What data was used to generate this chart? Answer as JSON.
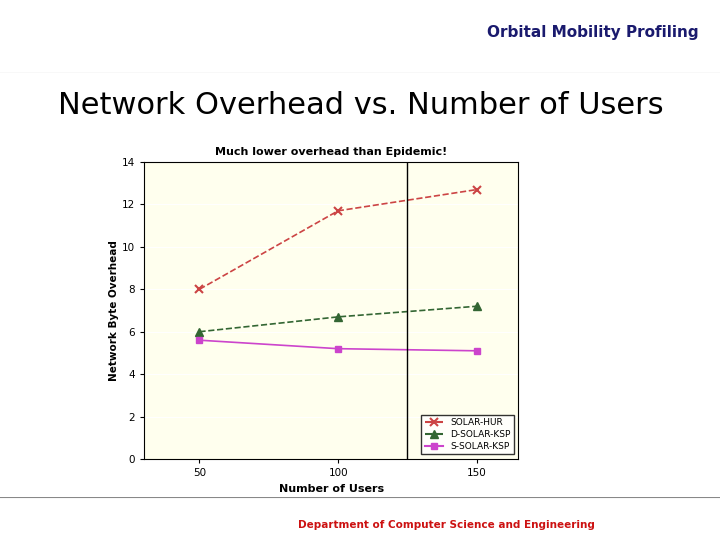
{
  "title": "Network Overhead vs. Number of Users",
  "header_text": "Orbital Mobility Profiling",
  "chart_title": "Much lower overhead than Epidemic!",
  "xlabel": "Number of Users",
  "ylabel": "Network Byte Overhead",
  "x_values": [
    50,
    100,
    150
  ],
  "solar_hur": [
    8.0,
    11.7,
    12.7
  ],
  "d_solar_ksp": [
    6.0,
    6.7,
    7.2
  ],
  "s_solar_ksp": [
    5.6,
    5.2,
    5.1
  ],
  "ylim": [
    0,
    14
  ],
  "yticks": [
    0,
    2,
    4,
    6,
    8,
    10,
    12,
    14
  ],
  "xticks": [
    50,
    100,
    150
  ],
  "bg_color": "#ffffee",
  "solar_hur_color": "#cc4444",
  "d_solar_ksp_color": "#336633",
  "s_solar_ksp_color": "#cc44cc",
  "vline_x": 125,
  "legend_labels": [
    "SOLAR-HUR",
    "D-SOLAR-KSP",
    "S-SOLAR-KSP"
  ],
  "header_bg": "#ffffff",
  "footer_bg": "#ffffff",
  "main_bg": "#ffffff"
}
